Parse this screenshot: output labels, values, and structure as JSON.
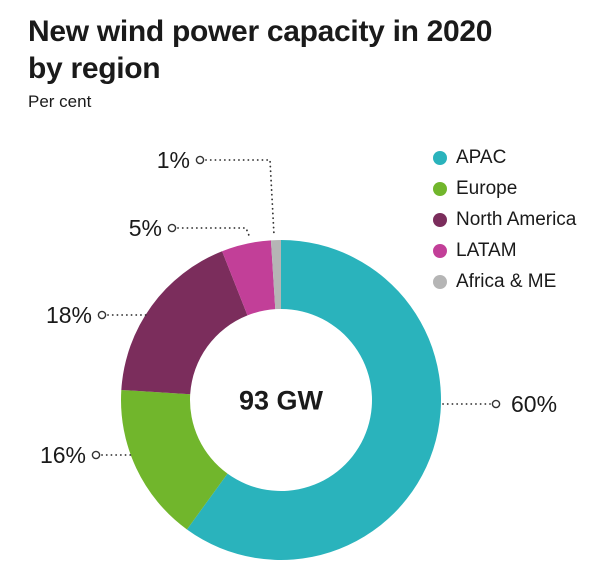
{
  "header": {
    "title": "New wind power capacity in 2020\nby region",
    "subtitle": "Per cent"
  },
  "chart_data": {
    "type": "pie",
    "donut": true,
    "title": "New wind power capacity in 2020 by region",
    "subtitle": "Per cent",
    "center_label": "93 GW",
    "unit": "%",
    "legend_position": "top-right",
    "start_angle_deg": 0,
    "direction": "clockwise",
    "series": [
      {
        "name": "APAC",
        "value": 60,
        "color": "#2ab3bc"
      },
      {
        "name": "Europe",
        "value": 16,
        "color": "#71b62c"
      },
      {
        "name": "North America",
        "value": 18,
        "color": "#7b2d5c"
      },
      {
        "name": "LATAM",
        "value": 5,
        "color": "#c23f98"
      },
      {
        "name": "Africa & ME",
        "value": 1,
        "color": "#b5b5b5"
      }
    ]
  },
  "colors": {
    "text": "#1a1a1a",
    "leader_line": "#333333"
  }
}
